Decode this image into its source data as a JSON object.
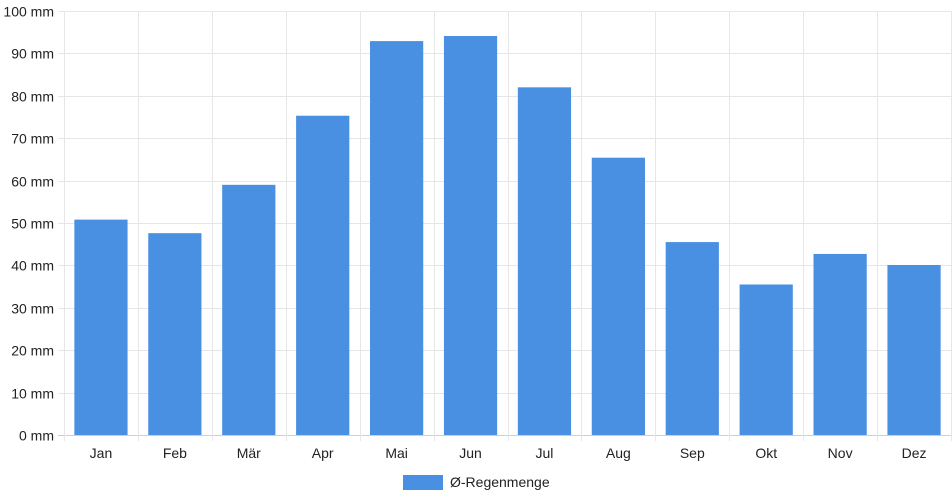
{
  "chart_data": {
    "type": "bar",
    "categories": [
      "Jan",
      "Feb",
      "Mär",
      "Apr",
      "Mai",
      "Jun",
      "Jul",
      "Aug",
      "Sep",
      "Okt",
      "Nov",
      "Dez"
    ],
    "series": [
      {
        "name": "Ø-Regenmenge",
        "values": [
          50.8,
          47.6,
          59.0,
          75.3,
          92.9,
          94.1,
          82.0,
          65.4,
          45.5,
          35.5,
          42.7,
          40.1
        ],
        "color": "#4a90e2"
      }
    ],
    "y_ticks": [
      "0 mm",
      "10 mm",
      "20 mm",
      "30 mm",
      "40 mm",
      "50 mm",
      "60 mm",
      "70 mm",
      "80 mm",
      "90 mm",
      "100 mm"
    ],
    "ylim": [
      0,
      100
    ],
    "grid": true,
    "legend_position": "bottom-center",
    "title": "",
    "xlabel": "",
    "ylabel": ""
  }
}
